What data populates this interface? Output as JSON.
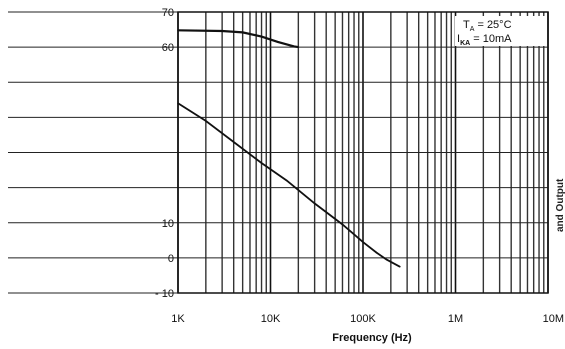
{
  "chart_data": {
    "type": "line",
    "title": "",
    "xlabel": "Frequency (Hz)",
    "ylabel_partial": "and Output",
    "x_scale": "log",
    "xlim": [
      1000,
      10000000
    ],
    "ylim": [
      -10,
      70
    ],
    "y_ticks": [
      70,
      60,
      10,
      0,
      -10
    ],
    "y_tick_labels": [
      "70",
      "60",
      "10",
      "0",
      "- 10"
    ],
    "x_ticks": [
      1000,
      10000,
      100000,
      1000000,
      10000000
    ],
    "x_tick_labels": [
      "1K",
      "10K",
      "100K",
      "1M",
      "10M"
    ],
    "grid": true,
    "conditions": {
      "ta": "T",
      "ta_sub": "A",
      "ta_value": " = 25°C",
      "ika": "I",
      "ika_sub": "KA",
      "ika_value": " = 10mA"
    },
    "series": [
      {
        "values": [
          {
            "x": 1000,
            "y": 64.8
          },
          {
            "x": 3000,
            "y": 64.6
          },
          {
            "x": 5000,
            "y": 64.2
          },
          {
            "x": 8000,
            "y": 63.0
          },
          {
            "x": 12000,
            "y": 61.5
          },
          {
            "x": 18000,
            "y": 60.2
          },
          {
            "x": 20000,
            "y": 60.0
          }
        ]
      },
      {
        "values": [
          {
            "x": 1000,
            "y": 44
          },
          {
            "x": 2000,
            "y": 39
          },
          {
            "x": 4000,
            "y": 33
          },
          {
            "x": 8000,
            "y": 27
          },
          {
            "x": 15000,
            "y": 22
          },
          {
            "x": 30000,
            "y": 15.5
          },
          {
            "x": 60000,
            "y": 9.5
          },
          {
            "x": 100000,
            "y": 4.5
          },
          {
            "x": 140000,
            "y": 1.5
          },
          {
            "x": 180000,
            "y": -0.5
          },
          {
            "x": 250000,
            "y": -2.5
          }
        ]
      }
    ]
  }
}
